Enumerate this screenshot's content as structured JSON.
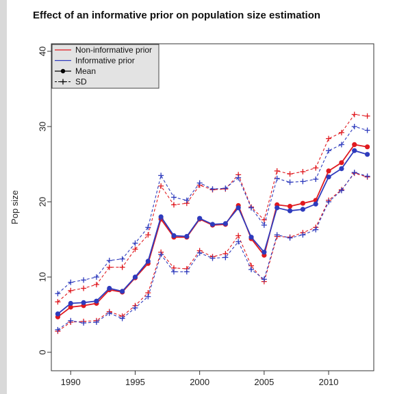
{
  "chart_data": {
    "type": "line",
    "title": "Effect of an informative prior on population size estimation",
    "xlabel": "",
    "ylabel": "Pop size",
    "xlim": [
      1988.5,
      2013.5
    ],
    "ylim": [
      0,
      40
    ],
    "xticks": [
      1990,
      1995,
      2000,
      2005,
      2010
    ],
    "yticks": [
      0,
      10,
      20,
      30,
      40
    ],
    "grid": false,
    "legend_position": "top-left",
    "legend": [
      {
        "label": "Non-informative prior",
        "style": "line",
        "color": "#e0191f"
      },
      {
        "label": "Informative prior",
        "style": "line",
        "color": "#2e3bbd"
      },
      {
        "label": "Mean",
        "style": "point-line",
        "color": "#000000"
      },
      {
        "label": "SD",
        "style": "dashed-plus",
        "color": "#000000"
      }
    ],
    "x": [
      1989,
      1990,
      1991,
      1992,
      1993,
      1994,
      1995,
      1996,
      1997,
      1998,
      1999,
      2000,
      2001,
      2002,
      2003,
      2004,
      2005,
      2006,
      2007,
      2008,
      2009,
      2010,
      2011,
      2012,
      2013
    ],
    "series": [
      {
        "prior": "non-informative",
        "stat": "mean",
        "color": "#e0191f",
        "values": [
          4.7,
          6.0,
          6.2,
          6.5,
          8.3,
          8.0,
          9.9,
          11.8,
          17.7,
          15.3,
          15.3,
          17.7,
          16.9,
          17.0,
          19.5,
          15.1,
          12.9,
          19.6,
          19.4,
          19.8,
          20.2,
          24.1,
          25.2,
          27.6,
          27.3
        ]
      },
      {
        "prior": "informative",
        "stat": "mean",
        "color": "#2e3bbd",
        "values": [
          5.1,
          6.5,
          6.6,
          6.8,
          8.5,
          8.1,
          10.0,
          12.1,
          18.0,
          15.5,
          15.4,
          17.8,
          17.0,
          17.1,
          19.2,
          15.3,
          13.3,
          19.2,
          18.8,
          19.0,
          19.7,
          23.3,
          24.4,
          26.8,
          26.3
        ]
      },
      {
        "prior": "non-informative",
        "stat": "mean+sd",
        "color": "#e0191f",
        "values": [
          6.7,
          8.2,
          8.5,
          9.0,
          11.3,
          11.3,
          13.7,
          15.6,
          22.1,
          19.6,
          19.8,
          22.2,
          21.6,
          21.7,
          23.6,
          19.3,
          17.6,
          24.1,
          23.7,
          24.0,
          24.5,
          28.4,
          29.2,
          31.6,
          31.4
        ]
      },
      {
        "prior": "informative",
        "stat": "mean+sd",
        "color": "#2e3bbd",
        "values": [
          7.8,
          9.3,
          9.6,
          10.0,
          12.2,
          12.4,
          14.5,
          16.6,
          23.5,
          20.6,
          20.2,
          22.5,
          21.7,
          21.8,
          23.2,
          19.2,
          16.9,
          23.1,
          22.6,
          22.7,
          23.0,
          26.8,
          27.6,
          30.0,
          29.5
        ]
      },
      {
        "prior": "non-informative",
        "stat": "mean-sd",
        "color": "#e0191f",
        "values": [
          2.8,
          4.0,
          4.1,
          4.2,
          5.4,
          4.8,
          6.2,
          7.9,
          13.3,
          11.2,
          11.1,
          13.5,
          12.7,
          13.1,
          15.5,
          11.5,
          9.4,
          15.4,
          15.3,
          15.9,
          16.6,
          20.2,
          21.6,
          23.8,
          23.3
        ]
      },
      {
        "prior": "informative",
        "stat": "mean-sd",
        "color": "#2e3bbd",
        "values": [
          3.0,
          4.2,
          3.9,
          4.0,
          5.2,
          4.5,
          5.9,
          7.4,
          13.0,
          10.7,
          10.7,
          13.2,
          12.5,
          12.6,
          14.7,
          11.0,
          9.7,
          15.6,
          15.2,
          15.6,
          16.3,
          20.0,
          21.5,
          23.9,
          23.4
        ]
      }
    ]
  }
}
